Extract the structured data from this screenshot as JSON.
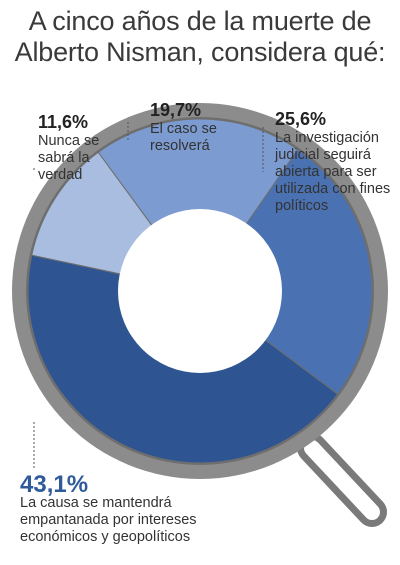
{
  "title": {
    "line1": "A cinco años de la muerte de",
    "line2": "Alberto Nisman, considera qué:"
  },
  "chart_data": {
    "type": "pie",
    "title": "A cinco años de la muerte de Alberto Nisman, considera qué:",
    "slices": [
      {
        "label": "Nunca se sabrá la verdad",
        "value": 11.6,
        "value_label": "11,6%",
        "color": "#a9bde0"
      },
      {
        "label": "El caso se resolverá",
        "value": 19.7,
        "value_label": "19,7%",
        "color": "#7c9bd0"
      },
      {
        "label": "La investigación judicial seguirá abierta para ser utilizada con fines políticos",
        "value": 25.6,
        "value_label": "25,6%",
        "color": "#4a72b2"
      },
      {
        "label": "La causa se mantendrá empantanada por intereses económicos y geopolíticos",
        "value": 43.1,
        "value_label": "43,1%",
        "color": "#2e5592"
      }
    ]
  },
  "labels": [
    {
      "pct": "11,6%",
      "text": "Nunca se sabrá la verdad"
    },
    {
      "pct": "19,7%",
      "text": "El caso se resolverá"
    },
    {
      "pct": "25,6%",
      "text": "La investigación judicial seguirá abierta para ser utilizada con fines políticos"
    },
    {
      "pct": "43,1%",
      "text": "La causa se mantendrá empantanada por intereses económicos y geopolíticos"
    }
  ],
  "colors": {
    "magnifier_frame": "#8c8c8c",
    "magnifier_frame_dark": "#6f6f6f",
    "leader_line": "#555555"
  }
}
